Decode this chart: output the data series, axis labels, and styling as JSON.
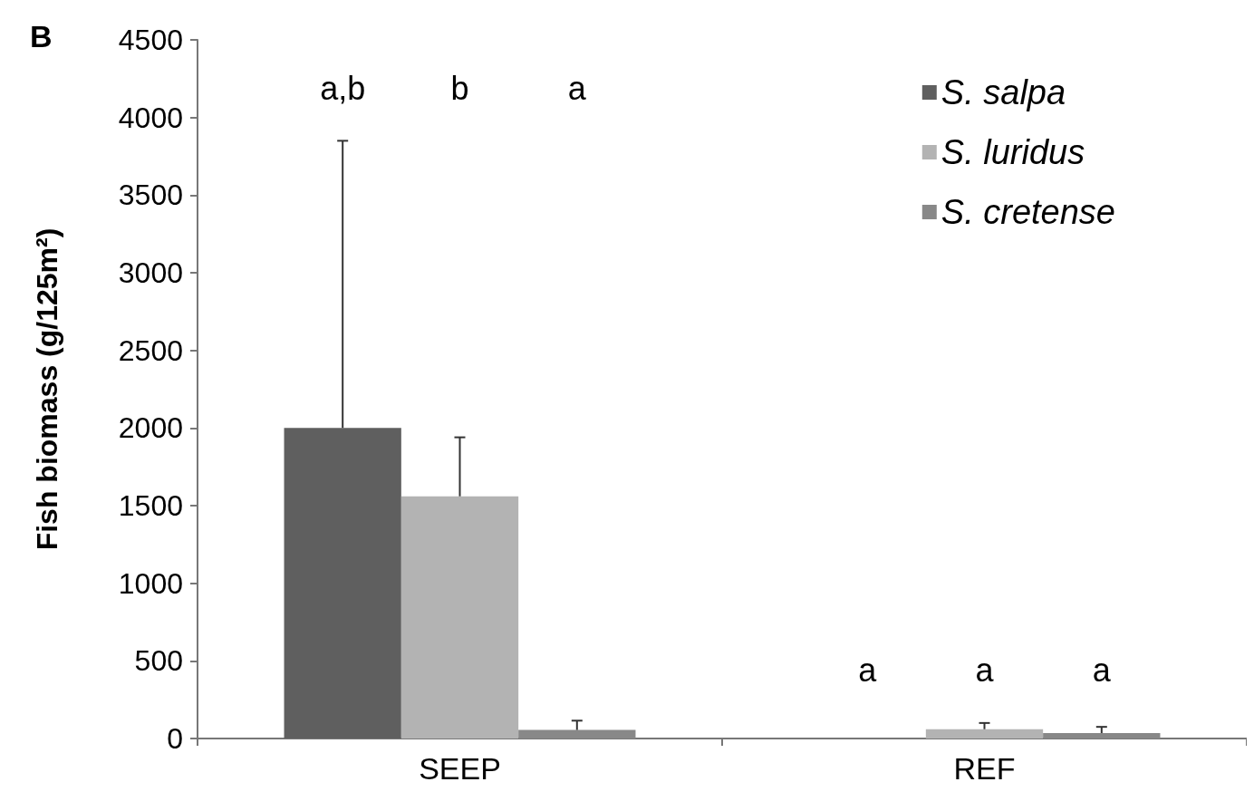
{
  "chart_data": {
    "type": "bar",
    "title": "B",
    "ylabel": "Fish biomass (g/125m²)",
    "categories": [
      "SEEP",
      "REF"
    ],
    "series": [
      {
        "name": "S. salpa",
        "color": "#5f5f5f",
        "values": [
          2000,
          0
        ],
        "errors": [
          [
            2000,
            3850
          ],
          null
        ]
      },
      {
        "name": "S. luridus",
        "color": "#b3b3b3",
        "values": [
          1560,
          60
        ],
        "errors": [
          [
            1560,
            1940
          ],
          [
            60,
            100
          ]
        ]
      },
      {
        "name": "S. cretense",
        "color": "#888888",
        "values": [
          55,
          35
        ],
        "errors": [
          [
            55,
            115
          ],
          [
            35,
            75
          ]
        ]
      }
    ],
    "ylim": [
      0,
      4500
    ],
    "yticks": [
      0,
      500,
      1000,
      1500,
      2000,
      2500,
      3000,
      3500,
      4000,
      4500
    ],
    "annotations": [
      "a,b",
      "b",
      "a",
      "a",
      "a",
      "a"
    ],
    "grid": false,
    "legend": "top right",
    "marker": "square"
  }
}
